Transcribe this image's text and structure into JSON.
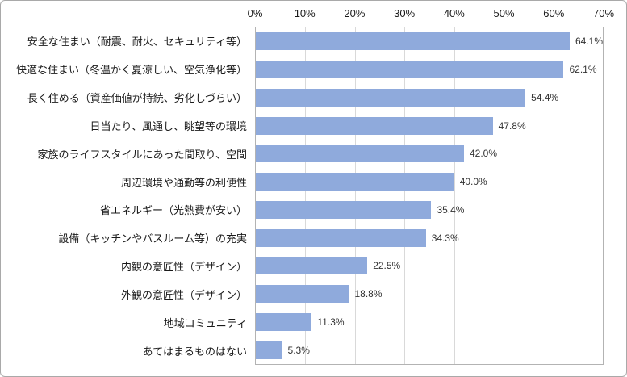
{
  "chart_data": {
    "type": "bar",
    "orientation": "horizontal",
    "title": "",
    "xlabel": "",
    "ylabel": "",
    "xlim": [
      0,
      70
    ],
    "grid": true,
    "legend": "none",
    "bar_color": "#8FAADC",
    "gridline_color": "#D9D9D9",
    "x_ticks": [
      "0%",
      "10%",
      "20%",
      "30%",
      "40%",
      "50%",
      "60%",
      "70%"
    ],
    "categories": [
      "安全な住まい（耐震、耐火、セキュリティ等）",
      "快適な住まい（冬温かく夏涼しい、空気浄化等）",
      "長く住める（資産価値が持続、劣化しづらい）",
      "日当たり、風通し、眺望等の環境",
      "家族のライフスタイルにあった間取り、空間",
      "周辺環境や通勤等の利便性",
      "省エネルギー（光熱費が安い）",
      "設備（キッチンやバスルーム等）の充実",
      "内観の意匠性（デザイン）",
      "外観の意匠性（デザイン）",
      "地域コミュニティ",
      "あてはまるものはない"
    ],
    "values": [
      64.1,
      62.1,
      54.4,
      47.8,
      42.0,
      40.0,
      35.4,
      34.3,
      22.5,
      18.8,
      11.3,
      5.3
    ],
    "value_labels": [
      "64.1%",
      "62.1%",
      "54.4%",
      "47.8%",
      "42.0%",
      "40.0%",
      "35.4%",
      "34.3%",
      "22.5%",
      "18.8%",
      "11.3%",
      "5.3%"
    ]
  }
}
